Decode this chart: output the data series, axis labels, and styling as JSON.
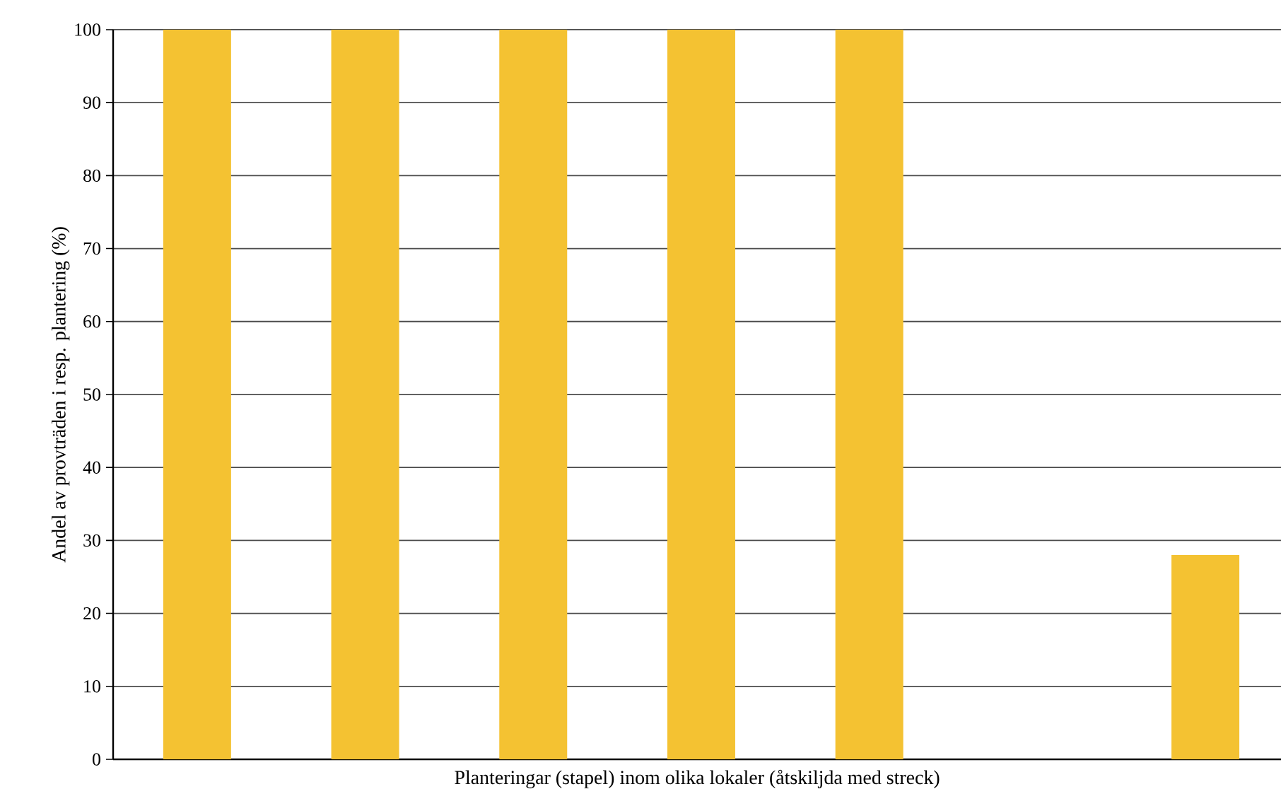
{
  "chart_data": {
    "type": "bar",
    "xlabel": "Planteringar (stapel) inom olika lokaler (åtskiljda med streck)",
    "ylabel": "Andel av provträden i resp. plantering (%)",
    "categories": [
      null,
      null,
      null,
      null,
      null,
      null,
      null
    ],
    "values": [
      100,
      100,
      100,
      100,
      100,
      0,
      28
    ],
    "color": "#f4c232",
    "ylim": [
      0,
      100
    ],
    "yticks": [
      0,
      10,
      20,
      30,
      40,
      50,
      60,
      70,
      80,
      90,
      100
    ],
    "grid": "y"
  }
}
